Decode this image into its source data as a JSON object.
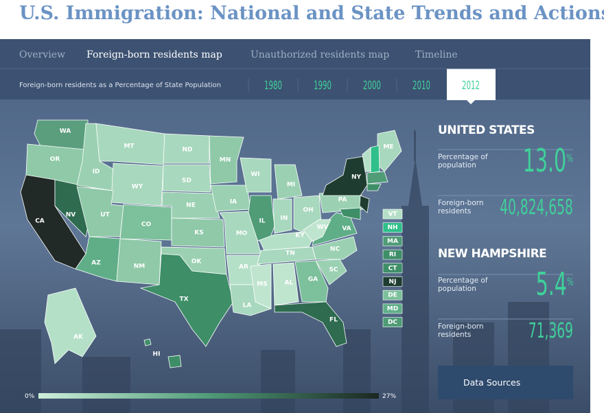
{
  "header": {
    "title": "U.S. Immigration: National and State Trends and Actions"
  },
  "nav": {
    "tabs": [
      "Overview",
      "Foreign-born residents map",
      "Unauthorized residents map",
      "Timeline"
    ],
    "subtitle": "Foreign-born residents as a Percentage of State Population",
    "years": [
      "1980",
      "1990",
      "2000",
      "2010",
      "2012"
    ]
  },
  "map": {
    "state_labels": [
      "WA",
      "OR",
      "CA",
      "NV",
      "ID",
      "MT",
      "WY",
      "UT",
      "CO",
      "AZ",
      "NM",
      "ND",
      "SD",
      "NE",
      "KS",
      "OK",
      "TX",
      "MN",
      "IA",
      "MO",
      "AR",
      "LA",
      "WI",
      "IL",
      "MI",
      "IN",
      "OH",
      "KY",
      "TN",
      "MS",
      "AL",
      "GA",
      "FL",
      "SC",
      "NC",
      "VA",
      "WV",
      "PA",
      "NY",
      "ME",
      "AK",
      "HI"
    ],
    "small_states": [
      "VT",
      "NH",
      "MA",
      "RI",
      "CT",
      "NJ",
      "DE",
      "MD",
      "DC"
    ],
    "scale": [
      "0%",
      "27%"
    ]
  },
  "stats": {
    "national": {
      "name": "UNITED STATES",
      "items": [
        {
          "label": "Percentage of population",
          "value": "13.0",
          "unit": "%"
        },
        {
          "label": "Foreign-born residents",
          "value": "40,824,658"
        }
      ]
    },
    "state": {
      "name": "NEW HAMPSHIRE",
      "items": [
        {
          "label": "Percentage of population",
          "value": "5.4",
          "unit": "%"
        },
        {
          "label": "Foreign-born residents",
          "value": "71,369"
        }
      ]
    }
  },
  "button": "Data Sources"
}
